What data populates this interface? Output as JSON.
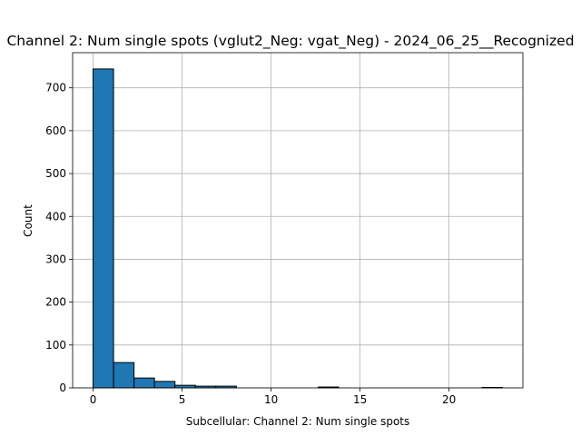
{
  "chart_data": {
    "type": "bar",
    "title": "Channel 2: Num single spots (vglut2_Neg: vgat_Neg) - 2024_06_25__Recognized",
    "xlabel": "Subcellular: Channel 2: Num single spots",
    "ylabel": "Count",
    "xlim": [
      -1.15,
      24.15
    ],
    "ylim": [
      0,
      782
    ],
    "xticks": [
      0,
      5,
      10,
      15,
      20
    ],
    "yticks": [
      0,
      100,
      200,
      300,
      400,
      500,
      600,
      700
    ],
    "grid": true,
    "bar_color": "#1f77b4",
    "edge_color": "#000000",
    "bins": [
      {
        "start": 0.0,
        "end": 1.15,
        "count": 744
      },
      {
        "start": 1.15,
        "end": 2.3,
        "count": 59
      },
      {
        "start": 2.3,
        "end": 3.45,
        "count": 23
      },
      {
        "start": 3.45,
        "end": 4.6,
        "count": 15
      },
      {
        "start": 4.6,
        "end": 5.75,
        "count": 6
      },
      {
        "start": 5.75,
        "end": 6.9,
        "count": 4
      },
      {
        "start": 6.9,
        "end": 8.05,
        "count": 4
      },
      {
        "start": 8.05,
        "end": 9.2,
        "count": 0
      },
      {
        "start": 9.2,
        "end": 10.35,
        "count": 0
      },
      {
        "start": 10.35,
        "end": 11.5,
        "count": 0
      },
      {
        "start": 11.5,
        "end": 12.65,
        "count": 0
      },
      {
        "start": 12.65,
        "end": 13.8,
        "count": 2
      },
      {
        "start": 13.8,
        "end": 14.95,
        "count": 0
      },
      {
        "start": 14.95,
        "end": 16.1,
        "count": 0
      },
      {
        "start": 16.1,
        "end": 17.25,
        "count": 0
      },
      {
        "start": 17.25,
        "end": 18.4,
        "count": 0
      },
      {
        "start": 18.4,
        "end": 19.55,
        "count": 0
      },
      {
        "start": 19.55,
        "end": 20.7,
        "count": 0
      },
      {
        "start": 20.7,
        "end": 21.85,
        "count": 0
      },
      {
        "start": 21.85,
        "end": 23.0,
        "count": 1
      }
    ]
  }
}
